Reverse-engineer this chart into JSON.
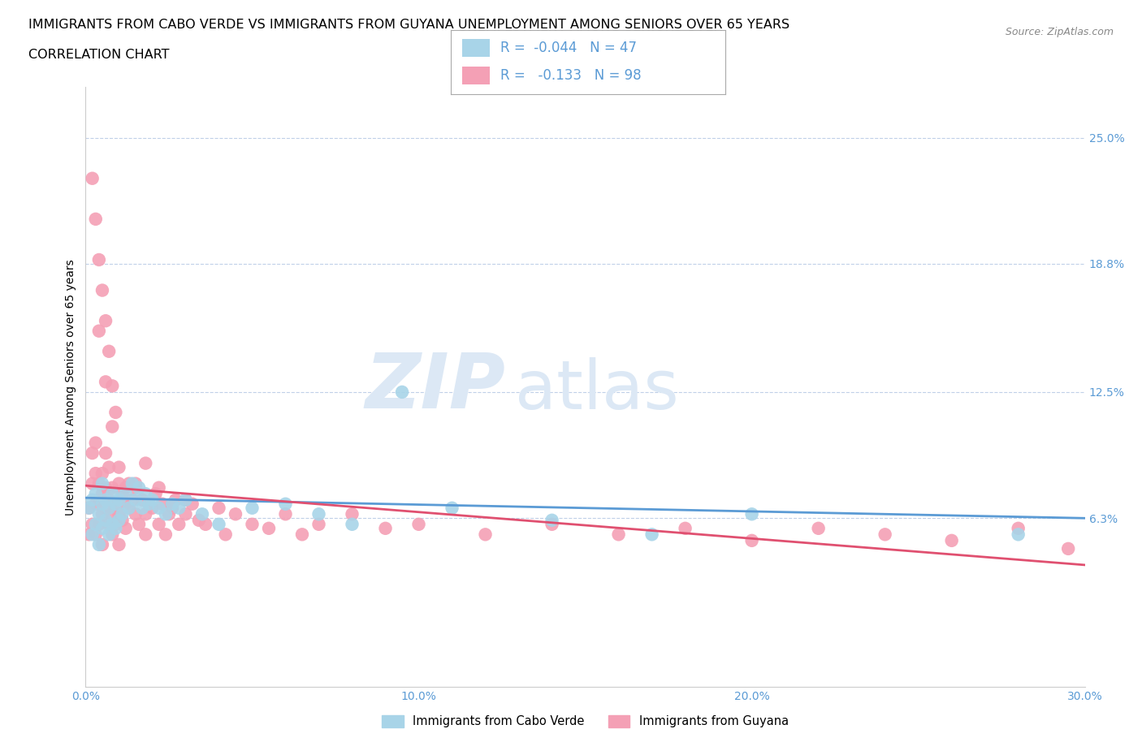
{
  "title_line1": "IMMIGRANTS FROM CABO VERDE VS IMMIGRANTS FROM GUYANA UNEMPLOYMENT AMONG SENIORS OVER 65 YEARS",
  "title_line2": "CORRELATION CHART",
  "source_text": "Source: ZipAtlas.com",
  "ylabel": "Unemployment Among Seniors over 65 years",
  "xmin": 0.0,
  "xmax": 0.3,
  "ymin": -0.02,
  "ymax": 0.275,
  "yticks": [
    0.063,
    0.125,
    0.188,
    0.25
  ],
  "ytick_labels": [
    "6.3%",
    "12.5%",
    "18.8%",
    "25.0%"
  ],
  "xticks": [
    0.0,
    0.1,
    0.2,
    0.3
  ],
  "xtick_labels": [
    "0.0%",
    "10.0%",
    "20.0%",
    "30.0%"
  ],
  "r_cabo_verde": -0.044,
  "n_cabo_verde": 47,
  "r_guyana": -0.133,
  "n_guyana": 98,
  "color_cabo_verde": "#a8d4e8",
  "color_guyana": "#f4a0b5",
  "trendline_cabo_verde": "#5b9bd5",
  "trendline_guyana": "#e05070",
  "watermark_zip": "ZIP",
  "watermark_atlas": "atlas",
  "watermark_color": "#dce8f5",
  "axis_label_color": "#5b9bd5",
  "legend_text_color": "#5b9bd5",
  "title_fontsize": 11.5,
  "cabo_verde_x": [
    0.001,
    0.002,
    0.002,
    0.003,
    0.003,
    0.004,
    0.004,
    0.005,
    0.005,
    0.005,
    0.006,
    0.006,
    0.007,
    0.007,
    0.008,
    0.008,
    0.009,
    0.009,
    0.01,
    0.01,
    0.011,
    0.012,
    0.013,
    0.014,
    0.015,
    0.016,
    0.017,
    0.018,
    0.019,
    0.02,
    0.022,
    0.024,
    0.026,
    0.028,
    0.03,
    0.035,
    0.04,
    0.05,
    0.06,
    0.07,
    0.08,
    0.095,
    0.11,
    0.14,
    0.17,
    0.2,
    0.28
  ],
  "cabo_verde_y": [
    0.068,
    0.055,
    0.072,
    0.06,
    0.075,
    0.05,
    0.065,
    0.07,
    0.058,
    0.08,
    0.062,
    0.072,
    0.055,
    0.068,
    0.06,
    0.075,
    0.058,
    0.07,
    0.062,
    0.072,
    0.065,
    0.075,
    0.068,
    0.08,
    0.072,
    0.078,
    0.068,
    0.075,
    0.07,
    0.072,
    0.068,
    0.065,
    0.07,
    0.068,
    0.072,
    0.065,
    0.06,
    0.068,
    0.07,
    0.065,
    0.06,
    0.125,
    0.068,
    0.062,
    0.055,
    0.065,
    0.055
  ],
  "guyana_x": [
    0.001,
    0.001,
    0.002,
    0.002,
    0.002,
    0.003,
    0.003,
    0.003,
    0.003,
    0.004,
    0.004,
    0.004,
    0.005,
    0.005,
    0.005,
    0.005,
    0.006,
    0.006,
    0.006,
    0.007,
    0.007,
    0.007,
    0.008,
    0.008,
    0.008,
    0.009,
    0.009,
    0.01,
    0.01,
    0.01,
    0.011,
    0.011,
    0.012,
    0.012,
    0.013,
    0.013,
    0.014,
    0.015,
    0.015,
    0.016,
    0.017,
    0.018,
    0.018,
    0.019,
    0.02,
    0.021,
    0.022,
    0.023,
    0.024,
    0.025,
    0.026,
    0.027,
    0.028,
    0.03,
    0.032,
    0.034,
    0.036,
    0.04,
    0.042,
    0.045,
    0.05,
    0.055,
    0.06,
    0.065,
    0.07,
    0.08,
    0.09,
    0.1,
    0.12,
    0.14,
    0.16,
    0.18,
    0.2,
    0.22,
    0.24,
    0.26,
    0.28,
    0.295,
    0.004,
    0.006,
    0.008,
    0.01,
    0.012,
    0.015,
    0.018,
    0.022,
    0.026,
    0.03,
    0.002,
    0.003,
    0.004,
    0.005,
    0.006,
    0.007,
    0.008,
    0.009
  ],
  "guyana_y": [
    0.068,
    0.055,
    0.08,
    0.06,
    0.095,
    0.07,
    0.055,
    0.085,
    0.1,
    0.072,
    0.06,
    0.08,
    0.065,
    0.075,
    0.085,
    0.05,
    0.068,
    0.078,
    0.095,
    0.06,
    0.072,
    0.088,
    0.065,
    0.078,
    0.055,
    0.07,
    0.06,
    0.065,
    0.08,
    0.05,
    0.075,
    0.062,
    0.07,
    0.058,
    0.068,
    0.08,
    0.072,
    0.065,
    0.078,
    0.06,
    0.072,
    0.065,
    0.055,
    0.07,
    0.068,
    0.075,
    0.06,
    0.07,
    0.055,
    0.065,
    0.068,
    0.072,
    0.06,
    0.065,
    0.07,
    0.062,
    0.06,
    0.068,
    0.055,
    0.065,
    0.06,
    0.058,
    0.065,
    0.055,
    0.06,
    0.065,
    0.058,
    0.06,
    0.055,
    0.06,
    0.055,
    0.058,
    0.052,
    0.058,
    0.055,
    0.052,
    0.058,
    0.048,
    0.155,
    0.13,
    0.108,
    0.088,
    0.078,
    0.08,
    0.09,
    0.078,
    0.07,
    0.072,
    0.23,
    0.21,
    0.19,
    0.175,
    0.16,
    0.145,
    0.128,
    0.115
  ],
  "cabo_trend_x0": 0.0,
  "cabo_trend_x1": 0.3,
  "cabo_trend_y0": 0.073,
  "cabo_trend_y1": 0.063,
  "guyana_trend_x0": 0.0,
  "guyana_trend_x1": 0.3,
  "guyana_trend_y0": 0.079,
  "guyana_trend_y1": 0.04
}
